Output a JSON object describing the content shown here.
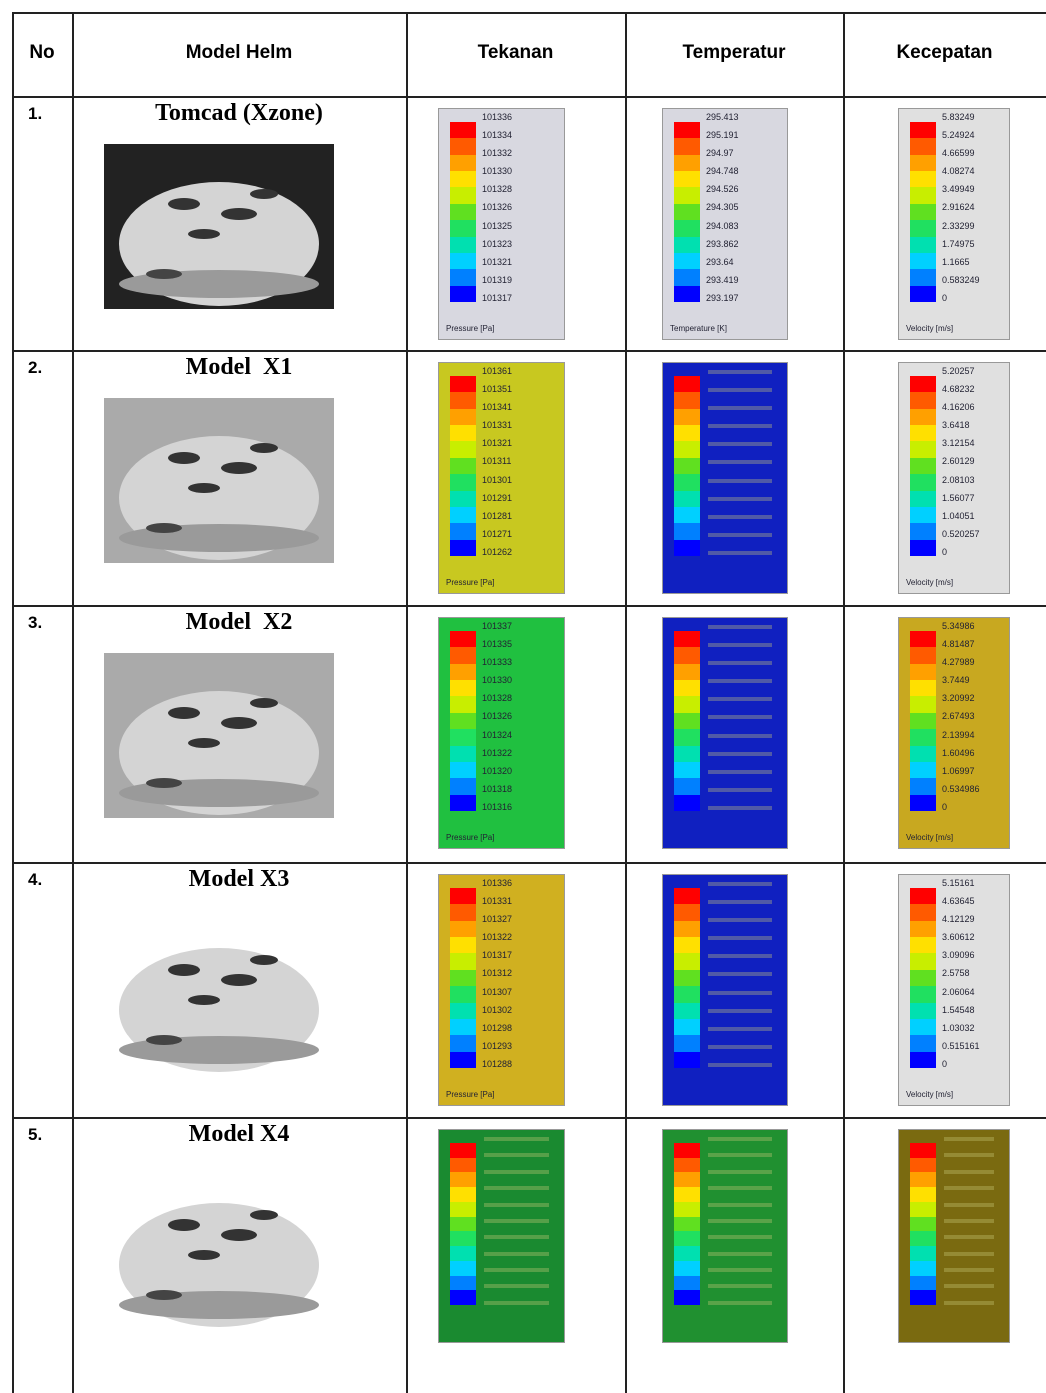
{
  "header": [
    "No",
    "Model Helm",
    "Tekanan",
    "Temperatur",
    "Kecepatan"
  ],
  "rows": [
    {
      "no": "1.",
      "model": "Tomcad (Xzone)",
      "tekanan": {
        "labels": [
          "101336",
          "101334",
          "101332",
          "101330",
          "101328",
          "101326",
          "101325",
          "101323",
          "101321",
          "101319",
          "101317"
        ],
        "unit": "Pressure [Pa]"
      },
      "temperatur": {
        "labels": [
          "295.413",
          "295.191",
          "294.97",
          "294.748",
          "294.526",
          "294.305",
          "294.083",
          "293.862",
          "293.64",
          "293.419",
          "293.197"
        ],
        "unit": "Temperature [K]"
      },
      "kecepatan": {
        "labels": [
          "5.83249",
          "5.24924",
          "4.66599",
          "4.08274",
          "3.49949",
          "2.91624",
          "2.33299",
          "1.74975",
          "1.1665",
          "0.583249",
          "0"
        ],
        "unit": "Velocity [m/s]"
      }
    },
    {
      "no": "2.",
      "model": "Model  X1",
      "tekanan": {
        "labels": [
          "101361",
          "101351",
          "101341",
          "101331",
          "101321",
          "101311",
          "101301",
          "101291",
          "101281",
          "101271",
          "101262"
        ],
        "unit": "Pressure [Pa]"
      },
      "kecepatan": {
        "labels": [
          "5.20257",
          "4.68232",
          "4.16206",
          "3.6418",
          "3.12154",
          "2.60129",
          "2.08103",
          "1.56077",
          "1.04051",
          "0.520257",
          "0"
        ],
        "unit": "Velocity [m/s]"
      }
    },
    {
      "no": "3.",
      "model": "Model  X2",
      "tekanan": {
        "labels": [
          "101337",
          "101335",
          "101333",
          "101330",
          "101328",
          "101326",
          "101324",
          "101322",
          "101320",
          "101318",
          "101316"
        ],
        "unit": "Pressure [Pa]"
      },
      "kecepatan": {
        "labels": [
          "5.34986",
          "4.81487",
          "4.27989",
          "3.7449",
          "3.20992",
          "2.67493",
          "2.13994",
          "1.60496",
          "1.06997",
          "0.534986",
          "0"
        ],
        "unit": "Velocity [m/s]"
      }
    },
    {
      "no": "4.",
      "model": "Model X3",
      "tekanan": {
        "labels": [
          "101336",
          "101331",
          "101327",
          "101322",
          "101317",
          "101312",
          "101307",
          "101302",
          "101298",
          "101293",
          "101288"
        ],
        "unit": "Pressure [Pa]"
      },
      "kecepatan": {
        "labels": [
          "5.15161",
          "4.63645",
          "4.12129",
          "3.60612",
          "3.09096",
          "2.5758",
          "2.06064",
          "1.54548",
          "1.03032",
          "0.515161",
          "0"
        ],
        "unit": "Velocity [m/s]"
      }
    },
    {
      "no": "5.",
      "model": "Model X4"
    }
  ]
}
